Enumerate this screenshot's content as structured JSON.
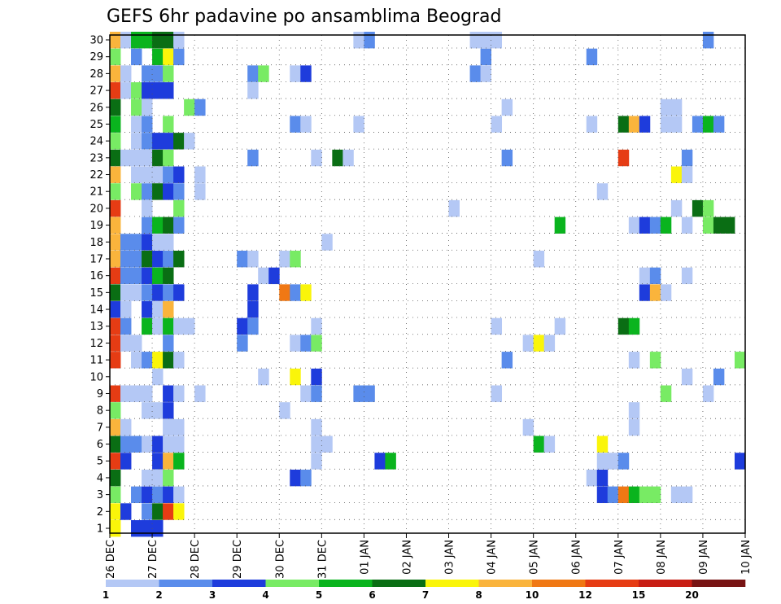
{
  "chart_data": {
    "type": "heatmap",
    "title": "GEFS 6hr padavine po ansamblima Beograd",
    "xlabel": "",
    "ylabel": "",
    "x_tick_labels": [
      "26 DEC",
      "27 DEC",
      "28 DEC",
      "29 DEC",
      "30 DEC",
      "31 DEC",
      "01 JAN",
      "02 JAN",
      "03 JAN",
      "04 JAN",
      "05 JAN",
      "06 JAN",
      "07 JAN",
      "08 JAN",
      "09 JAN",
      "10 JAN"
    ],
    "x_range": [
      0,
      60
    ],
    "steps_per_day": 4,
    "y_tick_labels": [
      "1",
      "2",
      "3",
      "4",
      "5",
      "6",
      "7",
      "8",
      "9",
      "10",
      "11",
      "12",
      "13",
      "14",
      "15",
      "16",
      "17",
      "18",
      "19",
      "20",
      "21",
      "22",
      "23",
      "24",
      "25",
      "26",
      "27",
      "28",
      "29",
      "30"
    ],
    "y_range": [
      1,
      30
    ],
    "grid": true,
    "legend_position": "bottom",
    "legend_bins": [
      {
        "from": 1,
        "to": 2,
        "color": "#b4c8f5"
      },
      {
        "from": 2,
        "to": 3,
        "color": "#5a8ceb"
      },
      {
        "from": 3,
        "to": 4,
        "color": "#1e3cdc"
      },
      {
        "from": 4,
        "to": 5,
        "color": "#78eb64"
      },
      {
        "from": 5,
        "to": 6,
        "color": "#0ab41e"
      },
      {
        "from": 6,
        "to": 7,
        "color": "#0a6e14"
      },
      {
        "from": 7,
        "to": 8,
        "color": "#faf50a"
      },
      {
        "from": 8,
        "to": 10,
        "color": "#fab43c"
      },
      {
        "from": 10,
        "to": 12,
        "color": "#f07814"
      },
      {
        "from": 12,
        "to": 15,
        "color": "#e63c14"
      },
      {
        "from": 15,
        "to": 20,
        "color": "#c81e14"
      },
      {
        "from": 20,
        "to": 30,
        "color": "#781414"
      }
    ],
    "legend_tick_labels": [
      "1",
      "2",
      "3",
      "4",
      "5",
      "6",
      "7",
      "8",
      "10",
      "12",
      "15",
      "20"
    ],
    "cells_format": "[time_step, member, precipitation_mm]",
    "cells": [
      [
        0,
        30,
        9
      ],
      [
        1,
        30,
        1.5
      ],
      [
        2,
        30,
        5.5
      ],
      [
        3,
        30,
        5.5
      ],
      [
        4,
        30,
        6.5
      ],
      [
        5,
        30,
        6.5
      ],
      [
        6,
        30,
        1.5
      ],
      [
        23,
        30,
        1.5
      ],
      [
        24,
        30,
        2.5
      ],
      [
        34,
        30,
        1.5
      ],
      [
        35,
        30,
        1.5
      ],
      [
        36,
        30,
        1.5
      ],
      [
        56,
        30,
        2.5
      ],
      [
        0,
        29,
        4.5
      ],
      [
        2,
        29,
        2.5
      ],
      [
        4,
        29,
        5.5
      ],
      [
        5,
        29,
        7.5
      ],
      [
        6,
        29,
        2.5
      ],
      [
        35,
        29,
        2.5
      ],
      [
        45,
        29,
        2.5
      ],
      [
        0,
        28,
        9
      ],
      [
        1,
        28,
        1.5
      ],
      [
        3,
        28,
        2.5
      ],
      [
        4,
        28,
        2.5
      ],
      [
        5,
        28,
        4.5
      ],
      [
        13,
        28,
        2.5
      ],
      [
        14,
        28,
        4.5
      ],
      [
        17,
        28,
        1.5
      ],
      [
        18,
        28,
        3.5
      ],
      [
        34,
        28,
        2.5
      ],
      [
        35,
        28,
        1.5
      ],
      [
        0,
        27,
        13
      ],
      [
        1,
        27,
        1.5
      ],
      [
        2,
        27,
        4.5
      ],
      [
        3,
        27,
        3.5
      ],
      [
        4,
        27,
        3.5
      ],
      [
        5,
        27,
        3.5
      ],
      [
        13,
        27,
        1.5
      ],
      [
        0,
        26,
        6.5
      ],
      [
        2,
        26,
        4.5
      ],
      [
        3,
        26,
        1.5
      ],
      [
        7,
        26,
        4.5
      ],
      [
        8,
        26,
        2.5
      ],
      [
        37,
        26,
        1.5
      ],
      [
        52,
        26,
        1.5
      ],
      [
        53,
        26,
        1.5
      ],
      [
        0,
        25,
        5.5
      ],
      [
        2,
        25,
        1.5
      ],
      [
        3,
        25,
        2.5
      ],
      [
        5,
        25,
        4.5
      ],
      [
        17,
        25,
        2.5
      ],
      [
        18,
        25,
        1.5
      ],
      [
        23,
        25,
        1.5
      ],
      [
        36,
        25,
        1.5
      ],
      [
        45,
        25,
        1.5
      ],
      [
        48,
        25,
        6.5
      ],
      [
        49,
        25,
        9
      ],
      [
        50,
        25,
        3.5
      ],
      [
        52,
        25,
        1.5
      ],
      [
        53,
        25,
        1.5
      ],
      [
        55,
        25,
        2.5
      ],
      [
        56,
        25,
        5.5
      ],
      [
        57,
        25,
        2.5
      ],
      [
        0,
        24,
        4.5
      ],
      [
        2,
        24,
        1.5
      ],
      [
        3,
        24,
        2.5
      ],
      [
        4,
        24,
        3.5
      ],
      [
        5,
        24,
        3.5
      ],
      [
        6,
        24,
        6.5
      ],
      [
        7,
        24,
        1.5
      ],
      [
        0,
        23,
        6.5
      ],
      [
        1,
        23,
        1.5
      ],
      [
        2,
        23,
        1.5
      ],
      [
        3,
        23,
        1.5
      ],
      [
        4,
        23,
        6.5
      ],
      [
        5,
        23,
        4.5
      ],
      [
        13,
        23,
        2.5
      ],
      [
        19,
        23,
        1.5
      ],
      [
        21,
        23,
        6.5
      ],
      [
        22,
        23,
        1.5
      ],
      [
        37,
        23,
        2.5
      ],
      [
        48,
        23,
        13
      ],
      [
        54,
        23,
        2.5
      ],
      [
        0,
        22,
        9
      ],
      [
        2,
        22,
        1.5
      ],
      [
        3,
        22,
        1.5
      ],
      [
        4,
        22,
        1.5
      ],
      [
        5,
        22,
        2.5
      ],
      [
        6,
        22,
        3.5
      ],
      [
        8,
        22,
        1.5
      ],
      [
        53,
        22,
        7.5
      ],
      [
        54,
        22,
        1.5
      ],
      [
        0,
        21,
        4.5
      ],
      [
        2,
        21,
        4.5
      ],
      [
        3,
        21,
        2.5
      ],
      [
        4,
        21,
        6.5
      ],
      [
        5,
        21,
        3.5
      ],
      [
        6,
        21,
        2.5
      ],
      [
        8,
        21,
        1.5
      ],
      [
        46,
        21,
        1.5
      ],
      [
        0,
        20,
        13
      ],
      [
        3,
        20,
        1.5
      ],
      [
        6,
        20,
        4.5
      ],
      [
        32,
        20,
        1.5
      ],
      [
        53,
        20,
        1.5
      ],
      [
        55,
        20,
        6.5
      ],
      [
        56,
        20,
        4.5
      ],
      [
        0,
        19,
        9
      ],
      [
        3,
        19,
        2.5
      ],
      [
        4,
        19,
        5.5
      ],
      [
        5,
        19,
        6.5
      ],
      [
        6,
        19,
        2.5
      ],
      [
        42,
        19,
        5.5
      ],
      [
        49,
        19,
        1.5
      ],
      [
        50,
        19,
        3.5
      ],
      [
        51,
        19,
        2.5
      ],
      [
        52,
        19,
        5.5
      ],
      [
        54,
        19,
        1.5
      ],
      [
        56,
        19,
        4.5
      ],
      [
        57,
        19,
        6.5
      ],
      [
        58,
        19,
        6.5
      ],
      [
        0,
        18,
        9
      ],
      [
        1,
        18,
        2.5
      ],
      [
        2,
        18,
        2.5
      ],
      [
        3,
        18,
        3.5
      ],
      [
        4,
        18,
        1.5
      ],
      [
        5,
        18,
        1.5
      ],
      [
        20,
        18,
        1.5
      ],
      [
        0,
        17,
        9
      ],
      [
        1,
        17,
        2.5
      ],
      [
        2,
        17,
        2.5
      ],
      [
        3,
        17,
        6.5
      ],
      [
        4,
        17,
        3.5
      ],
      [
        5,
        17,
        2.5
      ],
      [
        6,
        17,
        6.5
      ],
      [
        12,
        17,
        2.5
      ],
      [
        13,
        17,
        1.5
      ],
      [
        16,
        17,
        1.5
      ],
      [
        17,
        17,
        4.5
      ],
      [
        40,
        17,
        1.5
      ],
      [
        0,
        16,
        13
      ],
      [
        1,
        16,
        2.5
      ],
      [
        2,
        16,
        2.5
      ],
      [
        3,
        16,
        3.5
      ],
      [
        4,
        16,
        5.5
      ],
      [
        5,
        16,
        6.5
      ],
      [
        14,
        16,
        1.5
      ],
      [
        15,
        16,
        3.5
      ],
      [
        50,
        16,
        1.5
      ],
      [
        51,
        16,
        2.5
      ],
      [
        54,
        16,
        1.5
      ],
      [
        0,
        15,
        6.5
      ],
      [
        1,
        15,
        1.5
      ],
      [
        2,
        15,
        1.5
      ],
      [
        3,
        15,
        2.5
      ],
      [
        4,
        15,
        3.5
      ],
      [
        5,
        15,
        2.5
      ],
      [
        6,
        15,
        3.5
      ],
      [
        13,
        15,
        3.5
      ],
      [
        16,
        15,
        10
      ],
      [
        17,
        15,
        2.5
      ],
      [
        18,
        15,
        7.5
      ],
      [
        50,
        15,
        3.5
      ],
      [
        51,
        15,
        9
      ],
      [
        52,
        15,
        1.5
      ],
      [
        0,
        14,
        3.5
      ],
      [
        1,
        14,
        1.5
      ],
      [
        3,
        14,
        3.5
      ],
      [
        4,
        14,
        1.5
      ],
      [
        5,
        14,
        9
      ],
      [
        13,
        14,
        3.5
      ],
      [
        0,
        13,
        13
      ],
      [
        1,
        13,
        2.5
      ],
      [
        3,
        13,
        5.5
      ],
      [
        4,
        13,
        1.5
      ],
      [
        5,
        13,
        5.5
      ],
      [
        6,
        13,
        1.5
      ],
      [
        7,
        13,
        1.5
      ],
      [
        12,
        13,
        3.5
      ],
      [
        13,
        13,
        2.5
      ],
      [
        19,
        13,
        1.5
      ],
      [
        36,
        13,
        1.5
      ],
      [
        42,
        13,
        1.5
      ],
      [
        48,
        13,
        6.5
      ],
      [
        49,
        13,
        5.5
      ],
      [
        0,
        12,
        13
      ],
      [
        1,
        12,
        1.5
      ],
      [
        2,
        12,
        1.5
      ],
      [
        5,
        12,
        2.5
      ],
      [
        12,
        12,
        2.5
      ],
      [
        17,
        12,
        1.5
      ],
      [
        18,
        12,
        2.5
      ],
      [
        19,
        12,
        4.5
      ],
      [
        39,
        12,
        1.5
      ],
      [
        40,
        12,
        7.5
      ],
      [
        41,
        12,
        1.5
      ],
      [
        0,
        11,
        13
      ],
      [
        2,
        11,
        1.5
      ],
      [
        3,
        11,
        2.5
      ],
      [
        4,
        11,
        7.5
      ],
      [
        5,
        11,
        6.5
      ],
      [
        6,
        11,
        1.5
      ],
      [
        37,
        11,
        2.5
      ],
      [
        49,
        11,
        1.5
      ],
      [
        51,
        11,
        4.5
      ],
      [
        59,
        11,
        4.5
      ],
      [
        4,
        10,
        1.5
      ],
      [
        14,
        10,
        1.5
      ],
      [
        17,
        10,
        7.5
      ],
      [
        19,
        10,
        3.5
      ],
      [
        54,
        10,
        1.5
      ],
      [
        57,
        10,
        2.5
      ],
      [
        0,
        9,
        13
      ],
      [
        1,
        9,
        1.5
      ],
      [
        2,
        9,
        1.5
      ],
      [
        3,
        9,
        1.5
      ],
      [
        5,
        9,
        3.5
      ],
      [
        6,
        9,
        1.5
      ],
      [
        8,
        9,
        1.5
      ],
      [
        18,
        9,
        1.5
      ],
      [
        19,
        9,
        2.5
      ],
      [
        23,
        9,
        2.5
      ],
      [
        24,
        9,
        2.5
      ],
      [
        36,
        9,
        1.5
      ],
      [
        52,
        9,
        4.5
      ],
      [
        56,
        9,
        1.5
      ],
      [
        0,
        8,
        4.5
      ],
      [
        3,
        8,
        1.5
      ],
      [
        4,
        8,
        1.5
      ],
      [
        5,
        8,
        3.5
      ],
      [
        16,
        8,
        1.5
      ],
      [
        49,
        8,
        1.5
      ],
      [
        0,
        7,
        9
      ],
      [
        1,
        7,
        1.5
      ],
      [
        5,
        7,
        1.5
      ],
      [
        6,
        7,
        1.5
      ],
      [
        19,
        7,
        1.5
      ],
      [
        39,
        7,
        1.5
      ],
      [
        49,
        7,
        1.5
      ],
      [
        0,
        6,
        6.5
      ],
      [
        1,
        6,
        2.5
      ],
      [
        2,
        6,
        2.5
      ],
      [
        3,
        6,
        1.5
      ],
      [
        4,
        6,
        3.5
      ],
      [
        5,
        6,
        1.5
      ],
      [
        6,
        6,
        1.5
      ],
      [
        19,
        6,
        1.5
      ],
      [
        20,
        6,
        1.5
      ],
      [
        40,
        6,
        5.5
      ],
      [
        41,
        6,
        1.5
      ],
      [
        46,
        6,
        7.5
      ],
      [
        0,
        5,
        13
      ],
      [
        1,
        5,
        3.5
      ],
      [
        4,
        5,
        3.5
      ],
      [
        5,
        5,
        9
      ],
      [
        6,
        5,
        5.5
      ],
      [
        19,
        5,
        1.5
      ],
      [
        25,
        5,
        3.5
      ],
      [
        26,
        5,
        5.5
      ],
      [
        46,
        5,
        1.5
      ],
      [
        47,
        5,
        1.5
      ],
      [
        48,
        5,
        2.5
      ],
      [
        59,
        5,
        3.5
      ],
      [
        0,
        4,
        6.5
      ],
      [
        3,
        4,
        1.5
      ],
      [
        4,
        4,
        1.5
      ],
      [
        5,
        4,
        4.5
      ],
      [
        17,
        4,
        3.5
      ],
      [
        18,
        4,
        2.5
      ],
      [
        45,
        4,
        1.5
      ],
      [
        46,
        4,
        3.5
      ],
      [
        0,
        3,
        4.5
      ],
      [
        2,
        3,
        2.5
      ],
      [
        3,
        3,
        3.5
      ],
      [
        4,
        3,
        2.5
      ],
      [
        5,
        3,
        3.5
      ],
      [
        6,
        3,
        1.5
      ],
      [
        46,
        3,
        3.5
      ],
      [
        47,
        3,
        2.5
      ],
      [
        48,
        3,
        10
      ],
      [
        49,
        3,
        5.5
      ],
      [
        50,
        3,
        4.5
      ],
      [
        51,
        3,
        4.5
      ],
      [
        53,
        3,
        1.5
      ],
      [
        54,
        3,
        1.5
      ],
      [
        0,
        2,
        7.5
      ],
      [
        1,
        2,
        3.5
      ],
      [
        3,
        2,
        2.5
      ],
      [
        4,
        2,
        6.5
      ],
      [
        5,
        2,
        13
      ],
      [
        6,
        2,
        7.5
      ],
      [
        0,
        1,
        7.5
      ],
      [
        2,
        1,
        3.5
      ],
      [
        3,
        1,
        3.5
      ],
      [
        4,
        1,
        3.5
      ]
    ]
  }
}
